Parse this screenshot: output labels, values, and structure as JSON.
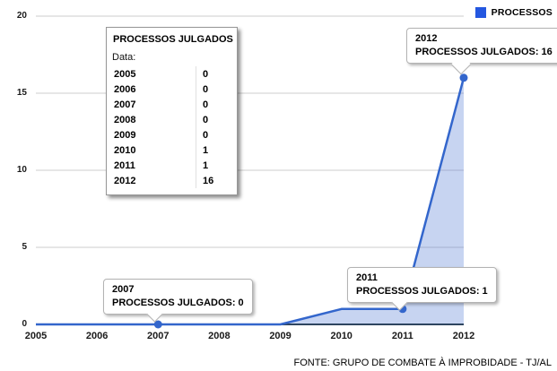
{
  "legend": {
    "label": "PROCESSOS",
    "color": "#2457e0"
  },
  "footer": "FONTE: GRUPO DE COMBATE À IMPROBIDADE - TJ/AL",
  "data_box": {
    "title": "PROCESSOS JULGADOS",
    "subtitle": "Data:",
    "rows": [
      {
        "year": "2005",
        "value": "0"
      },
      {
        "year": "2006",
        "value": "0"
      },
      {
        "year": "2007",
        "value": "0"
      },
      {
        "year": "2008",
        "value": "0"
      },
      {
        "year": "2009",
        "value": "0"
      },
      {
        "year": "2010",
        "value": "1"
      },
      {
        "year": "2011",
        "value": "1"
      },
      {
        "year": "2012",
        "value": "16"
      }
    ]
  },
  "tooltips": [
    {
      "year": "2007",
      "label": "PROCESSOS JULGADOS:",
      "value": "0"
    },
    {
      "year": "2011",
      "label": "PROCESSOS JULGADOS:",
      "value": "1"
    },
    {
      "year": "2012",
      "label": "PROCESSOS JULGADOS:",
      "value": "16"
    }
  ],
  "chart_data": {
    "type": "area",
    "title": "",
    "xlabel": "",
    "ylabel": "",
    "categories": [
      "2005",
      "2006",
      "2007",
      "2008",
      "2009",
      "2010",
      "2011",
      "2012"
    ],
    "series": [
      {
        "name": "PROCESSOS",
        "values": [
          0,
          0,
          0,
          0,
          0,
          1,
          1,
          16
        ]
      }
    ],
    "ylim": [
      0,
      20
    ],
    "yticks": [
      0,
      5,
      10,
      15,
      20
    ],
    "grid": true,
    "legend_position": "top-right",
    "marked_points": [
      "2007",
      "2011",
      "2012"
    ],
    "colors": {
      "line": "#3366cc",
      "fill": "rgba(82,122,212,0.32)",
      "axis": "#2e4560",
      "grid": "#cccccc"
    }
  }
}
